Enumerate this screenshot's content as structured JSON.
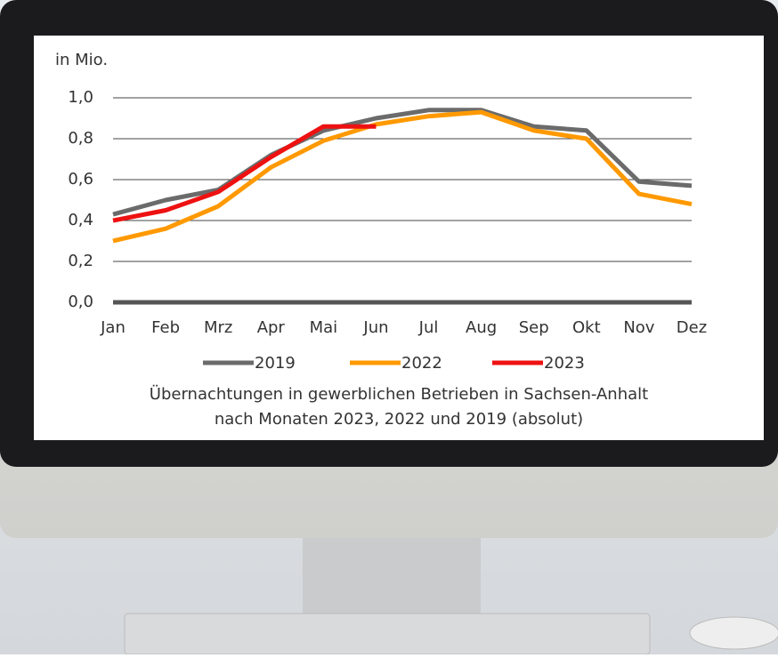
{
  "chart_data": {
    "type": "line",
    "ylabel": "in Mio.",
    "title": [
      "Übernachtungen in gewerblichen Betrieben in Sachsen-Anhalt",
      "nach Monaten 2023, 2022 und 2019 (absolut)"
    ],
    "categories": [
      "Jan",
      "Feb",
      "Mrz",
      "Apr",
      "Mai",
      "Jun",
      "Jul",
      "Aug",
      "Sep",
      "Okt",
      "Nov",
      "Dez"
    ],
    "series": [
      {
        "name": "2019",
        "color": "#6b6b6b",
        "values": [
          0.43,
          0.5,
          0.55,
          0.72,
          0.84,
          0.9,
          0.94,
          0.94,
          0.86,
          0.84,
          0.59,
          0.57
        ]
      },
      {
        "name": "2022",
        "color": "#ff9900",
        "values": [
          0.3,
          0.36,
          0.47,
          0.66,
          0.79,
          0.87,
          0.91,
          0.93,
          0.84,
          0.8,
          0.53,
          0.48
        ]
      },
      {
        "name": "2023",
        "color": "#ee1111",
        "values": [
          0.4,
          0.45,
          0.54,
          0.71,
          0.86,
          0.86,
          null,
          null,
          null,
          null,
          null,
          null
        ]
      }
    ],
    "ylim": [
      0,
      1
    ],
    "yticks": [
      {
        "value": 0,
        "label": "0,0"
      },
      {
        "value": 0.2,
        "label": "0,2"
      },
      {
        "value": 0.4,
        "label": "0,4"
      },
      {
        "value": 0.6,
        "label": "0,6"
      },
      {
        "value": 0.8,
        "label": "0,8"
      },
      {
        "value": 1,
        "label": "1,0"
      }
    ],
    "grid": true,
    "legend": "bottom"
  }
}
